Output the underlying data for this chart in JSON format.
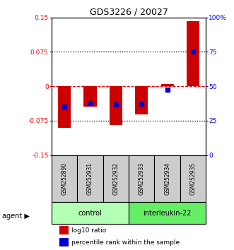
{
  "title": "GDS3226 / 20027",
  "samples": [
    "GSM252890",
    "GSM252931",
    "GSM252932",
    "GSM252933",
    "GSM252934",
    "GSM252935"
  ],
  "log10_ratio": [
    -0.09,
    -0.045,
    -0.085,
    -0.062,
    0.005,
    0.142
  ],
  "percentile_rank": [
    35.0,
    38.0,
    37.0,
    37.5,
    47.5,
    75.0
  ],
  "ylim_left": [
    -0.15,
    0.15
  ],
  "ylim_right": [
    0,
    100
  ],
  "yticks_left": [
    -0.15,
    -0.075,
    0,
    0.075,
    0.15
  ],
  "yticks_right": [
    0,
    25,
    50,
    75,
    100
  ],
  "ytick_labels_left": [
    "-0.15",
    "-0.075",
    "0",
    "0.075",
    "0.15"
  ],
  "ytick_labels_right": [
    "0",
    "25",
    "50",
    "75",
    "100%"
  ],
  "groups": [
    {
      "label": "control",
      "color": "#b3ffb3"
    },
    {
      "label": "interleukin-22",
      "color": "#66ee66"
    }
  ],
  "bar_color_red": "#cc0000",
  "bar_color_blue": "#0000cc",
  "bar_width": 0.5,
  "blue_marker_size": 5,
  "bg_color": "#ffffff",
  "agent_label": "agent",
  "legend_red_label": "log10 ratio",
  "legend_blue_label": "percentile rank within the sample"
}
